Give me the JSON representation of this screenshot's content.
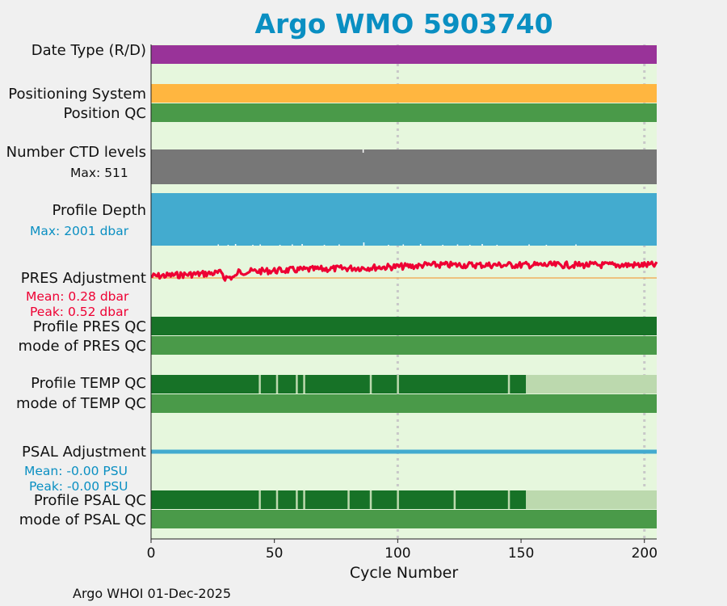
{
  "title": "Argo WMO 5903740",
  "footer": "Argo WHOI 01-Dec-2025",
  "colors": {
    "title": "#0a8fc2",
    "background": "#e6f7dd",
    "date_type": "#993399",
    "positioning": "#ffb640",
    "qc_mid": "#4a9a49",
    "qc_dark": "#177227",
    "qc_light": "#bcd9ae",
    "ctd": "#777777",
    "depth": "#43abcf",
    "pres_adj": "#ee0033",
    "psal_adj": "#43abcf",
    "grid": "#c8c8c8"
  },
  "rows": {
    "date_type": "Date Type (R/D)",
    "positioning_system": "Positioning System",
    "position_qc": "Position QC",
    "ctd_levels": "Number CTD levels",
    "ctd_max": "Max: 511",
    "profile_depth": "Profile Depth",
    "depth_max": "Max: 2001 dbar",
    "pres_adjustment": "PRES Adjustment",
    "pres_mean": "Mean: 0.28 dbar",
    "pres_peak": "Peak: 0.52 dbar",
    "profile_pres_qc": "Profile PRES QC",
    "mode_pres_qc": "mode of PRES QC",
    "profile_temp_qc": "Profile TEMP QC",
    "mode_temp_qc": "mode of TEMP QC",
    "psal_adjustment": "PSAL Adjustment",
    "psal_mean": "Mean: -0.00 PSU",
    "psal_peak": "Peak: -0.00 PSU",
    "profile_psal_qc": "Profile PSAL QC",
    "mode_psal_qc": "mode of PSAL QC"
  },
  "chart_data": {
    "type": "bar",
    "title": "Argo WMO 5903740",
    "xlabel": "Cycle Number",
    "xlim": [
      0,
      205
    ],
    "x_ticks": [
      0,
      50,
      100,
      150,
      200
    ],
    "x_tick_labels": [
      "0",
      "50",
      "100",
      "150",
      "200"
    ],
    "grid_x": [
      100,
      200
    ],
    "n_cycles": 205,
    "ctd_levels_max": 511,
    "profile_depth_max_dbar": 2001,
    "pres_adjustment": {
      "mean_dbar": 0.28,
      "peak_dbar": 0.52
    },
    "psal_adjustment": {
      "mean_psu": -0.0,
      "peak_psu": -0.0
    },
    "temp_qc_gap_cycles": [
      44,
      51,
      59,
      62,
      89,
      100,
      145
    ],
    "psal_qc_gap_cycles": [
      44,
      51,
      59,
      62,
      80,
      89,
      100,
      123,
      145
    ],
    "qc_good_until_cycle": 152
  }
}
